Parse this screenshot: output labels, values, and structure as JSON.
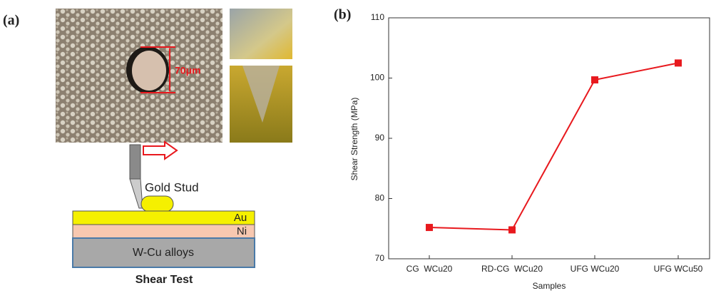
{
  "diagram": {
    "panel_label": "(a)",
    "scale_label": "70μm",
    "stud_label": "Gold Stud",
    "layers": [
      "Au",
      "Ni",
      "W-Cu alloys"
    ],
    "caption": "Shear Test"
  },
  "chart_data": {
    "type": "line",
    "panel_label": "(b)",
    "x_label": "Samples",
    "y_label": "Shear Strength (MPa)",
    "categories": [
      "CG  WCu20",
      "RD-CG  WCu20",
      "UFG WCu20",
      "UFG WCu50"
    ],
    "values": [
      75.2,
      74.8,
      99.7,
      102.5
    ],
    "color": "#e8191e",
    "ylim": [
      70,
      110
    ],
    "yticks": [
      70,
      80,
      90,
      100,
      110
    ],
    "grid": false
  }
}
